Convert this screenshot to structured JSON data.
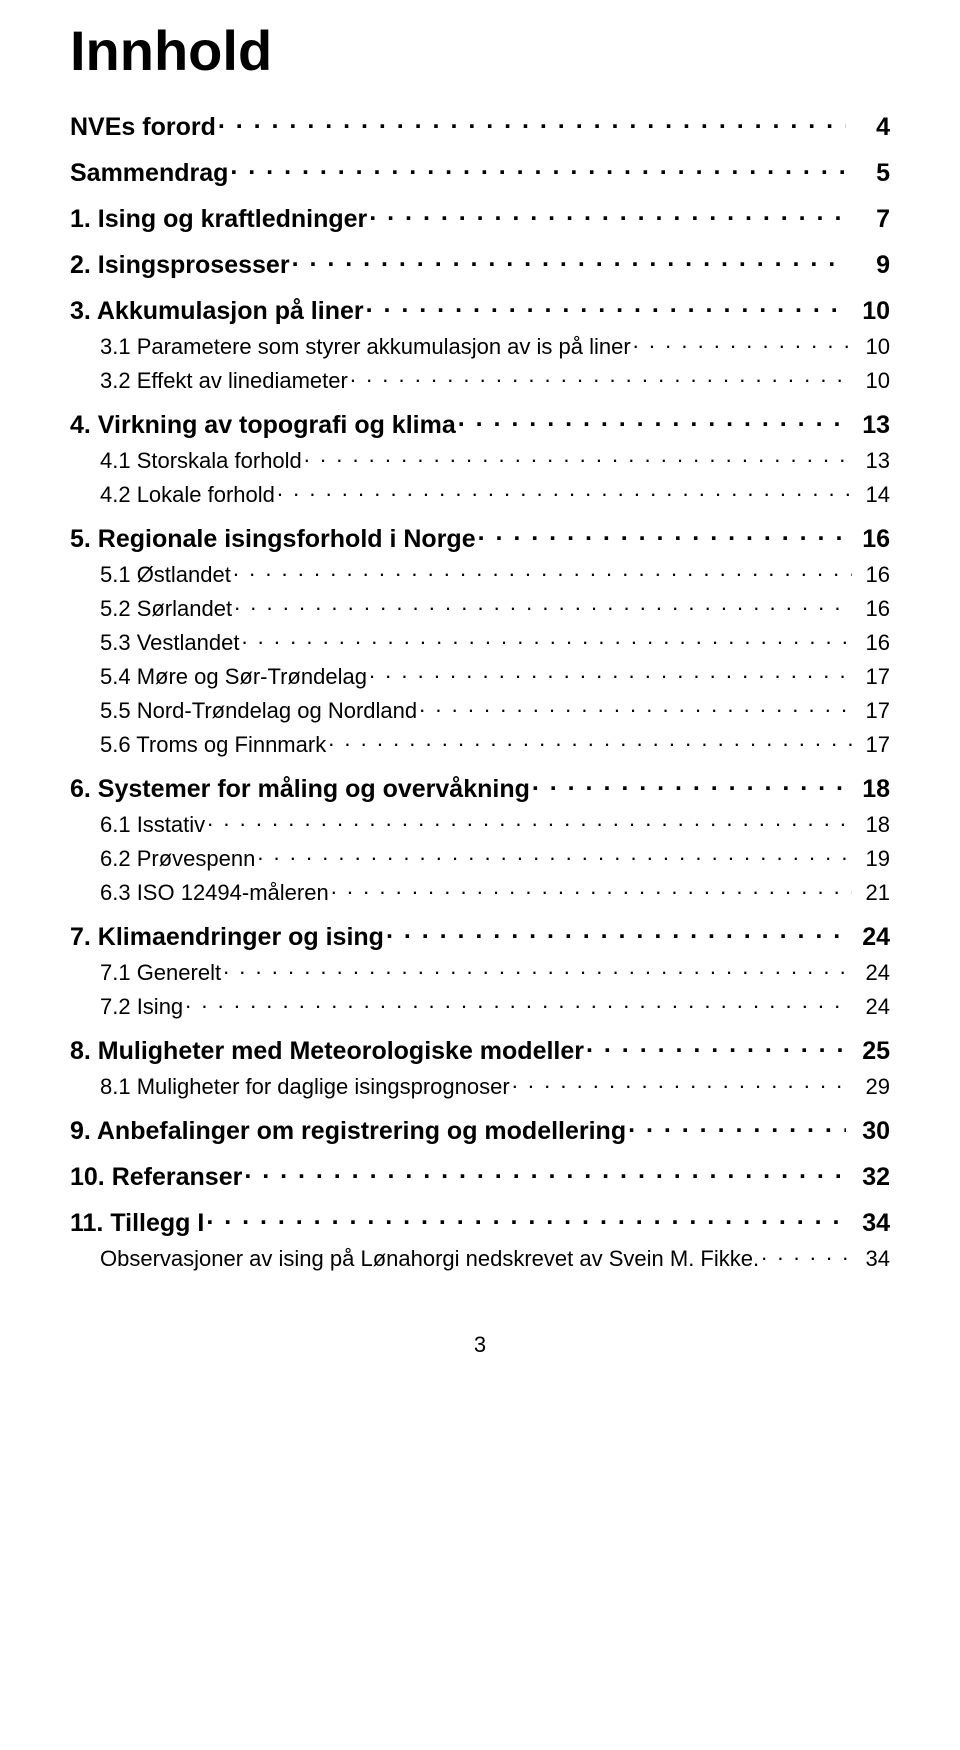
{
  "title": "Innhold",
  "page_number": "3",
  "typography": {
    "title_fontsize_pt": 42,
    "level0_fontsize_pt": 19,
    "level1_fontsize_pt": 17,
    "font_family": "Arial",
    "text_color": "#000000",
    "background_color": "#ffffff",
    "leader_char": "."
  },
  "entries": [
    {
      "level": 0,
      "label": "NVEs forord",
      "page": "4"
    },
    {
      "level": 0,
      "label": "Sammendrag",
      "page": "5"
    },
    {
      "level": 0,
      "label": "1. Ising og kraftledninger",
      "page": "7"
    },
    {
      "level": 0,
      "label": "2. Isingsprosesser",
      "page": "9"
    },
    {
      "level": 0,
      "label": "3. Akkumulasjon på liner",
      "page": "10"
    },
    {
      "level": 1,
      "label": "3.1 Parametere som styrer akkumulasjon av is på liner",
      "page": "10"
    },
    {
      "level": 1,
      "label": "3.2 Effekt av linediameter",
      "page": "10"
    },
    {
      "level": 0,
      "label": "4. Virkning av topografi og klima",
      "page": "13"
    },
    {
      "level": 1,
      "label": "4.1 Storskala forhold",
      "page": "13"
    },
    {
      "level": 1,
      "label": "4.2 Lokale forhold",
      "page": "14"
    },
    {
      "level": 0,
      "label": "5. Regionale isingsforhold i Norge",
      "page": "16"
    },
    {
      "level": 1,
      "label": "5.1 Østlandet",
      "page": "16"
    },
    {
      "level": 1,
      "label": "5.2 Sørlandet",
      "page": "16"
    },
    {
      "level": 1,
      "label": "5.3 Vestlandet",
      "page": "16"
    },
    {
      "level": 1,
      "label": "5.4 Møre og Sør-Trøndelag",
      "page": "17"
    },
    {
      "level": 1,
      "label": "5.5 Nord-Trøndelag og Nordland",
      "page": "17"
    },
    {
      "level": 1,
      "label": "5.6 Troms og Finnmark",
      "page": "17"
    },
    {
      "level": 0,
      "label": "6. Systemer for måling og overvåkning",
      "page": "18"
    },
    {
      "level": 1,
      "label": "6.1 Isstativ",
      "page": "18"
    },
    {
      "level": 1,
      "label": "6.2 Prøvespenn",
      "page": "19"
    },
    {
      "level": 1,
      "label": "6.3 ISO 12494-måleren",
      "page": "21"
    },
    {
      "level": 0,
      "label": "7. Klimaendringer og ising",
      "page": "24"
    },
    {
      "level": 1,
      "label": "7.1 Generelt",
      "page": "24"
    },
    {
      "level": 1,
      "label": "7.2 Ising",
      "page": "24"
    },
    {
      "level": 0,
      "label": "8. Muligheter med Meteorologiske modeller",
      "page": "25"
    },
    {
      "level": 1,
      "label": "8.1 Muligheter for daglige isingsprognoser",
      "page": "29"
    },
    {
      "level": 0,
      "label": "9. Anbefalinger om registrering og modellering",
      "page": "30"
    },
    {
      "level": 0,
      "label": "10. Referanser",
      "page": "32"
    },
    {
      "level": 0,
      "label": "11. Tillegg I",
      "page": "34"
    },
    {
      "level": 1,
      "label": "Observasjoner av ising på Lønahorgi nedskrevet av Svein M. Fikke.",
      "page": "34"
    }
  ]
}
